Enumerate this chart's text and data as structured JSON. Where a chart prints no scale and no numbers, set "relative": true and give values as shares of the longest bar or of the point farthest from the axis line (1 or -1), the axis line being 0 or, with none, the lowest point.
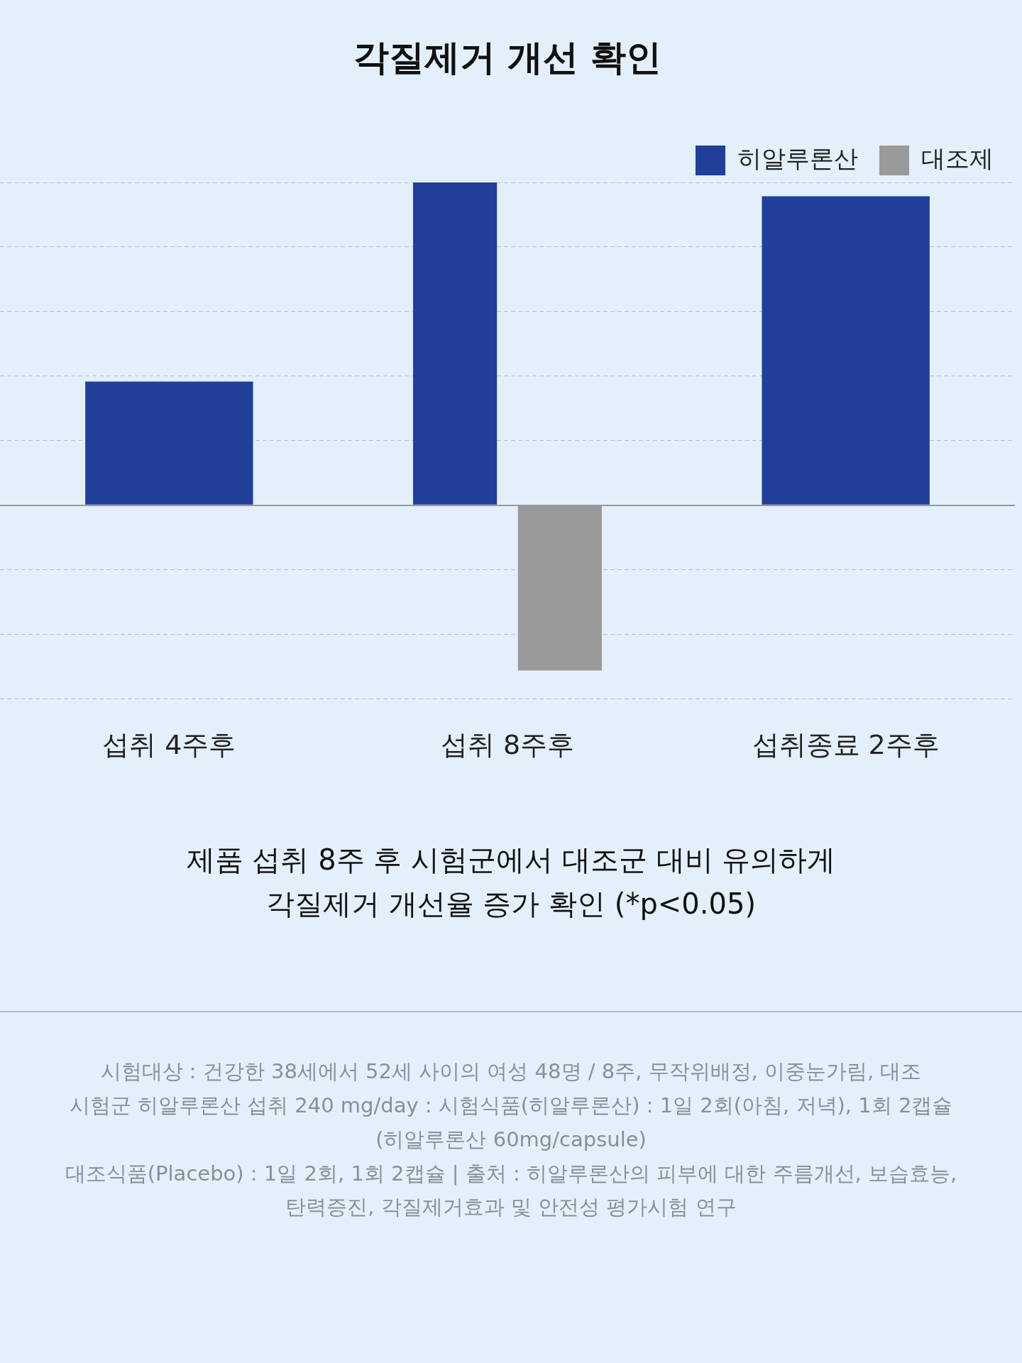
{
  "chart_data": {
    "type": "bar",
    "title": "각질제거 개선 확인",
    "categories": [
      "섭취 4주후",
      "섭취 8주후",
      "섭취종료 2주후"
    ],
    "relative": true,
    "series": [
      {
        "name": "히알루론산",
        "color": "#1f3f99",
        "values": [
          0.383,
          1,
          0.957
        ]
      },
      {
        "name": "대조제",
        "color": "#999999",
        "values": [
          null,
          -0.512,
          null
        ]
      }
    ],
    "grid": "y",
    "legend": "top right",
    "tick_labels": "x",
    "annotations": [
      "제품 섭취 8주 후 시험군에서 대조군 대비 유의하게",
      "각질제거 개선율 증가 확인 (*p<0.05)",
      "시험대상 :  건강한 38세에서 52세 사이의 여성 48명 / 8주, 무작위배정, 이중눈가림, 대조",
      "시험군 히알루론산 섭취 240 mg/day : 시험식품(히알루론산) : 1일 2회(아침, 저녁), 1회 2캡슐",
      "(히알루론산 60mg/capsule)",
      "대조식품(Placebo) : 1일 2회, 1회 2캡슐 | 출처 :  히알루론산의 피부에 대한 주름개선, 보습효능,",
      "탄력증진, 각질제거효과 및 안전성 평가시험 연구"
    ]
  }
}
